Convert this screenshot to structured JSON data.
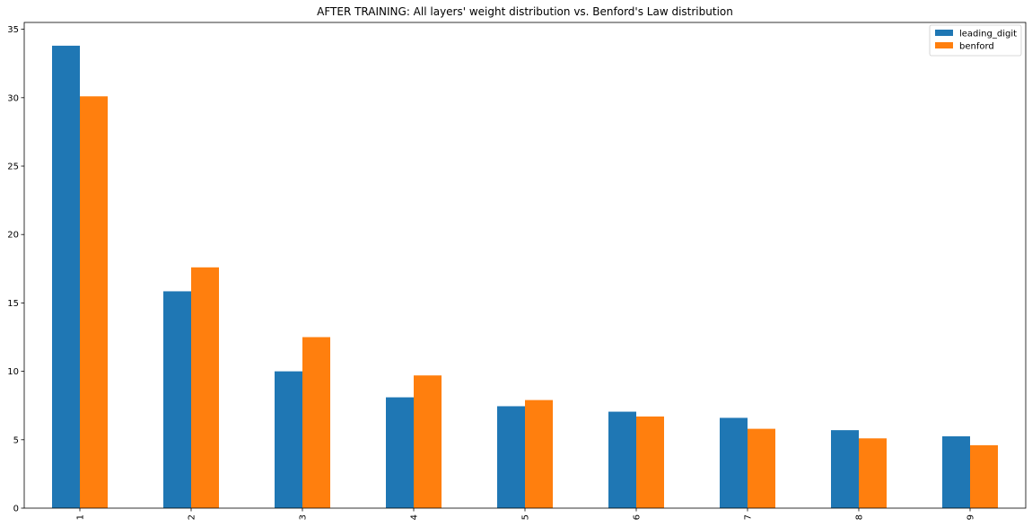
{
  "chart_data": {
    "type": "bar",
    "title": "AFTER TRAINING: All layers' weight distribution vs. Benford's Law distribution",
    "xlabel": "",
    "ylabel": "",
    "categories": [
      "1",
      "2",
      "3",
      "4",
      "5",
      "6",
      "7",
      "8",
      "9"
    ],
    "series": [
      {
        "name": "leading_digit",
        "color": "#1f77b4",
        "values": [
          33.8,
          15.85,
          10.0,
          8.1,
          7.45,
          7.05,
          6.6,
          5.7,
          5.25
        ]
      },
      {
        "name": "benford",
        "color": "#ff7f0e",
        "values": [
          30.1,
          17.6,
          12.5,
          9.7,
          7.9,
          6.7,
          5.8,
          5.1,
          4.6
        ]
      }
    ],
    "ylim": [
      0,
      35.5
    ],
    "yticks": [
      0,
      5,
      10,
      15,
      20,
      25,
      30,
      35
    ],
    "grid": false,
    "legend_position": "top-right"
  }
}
